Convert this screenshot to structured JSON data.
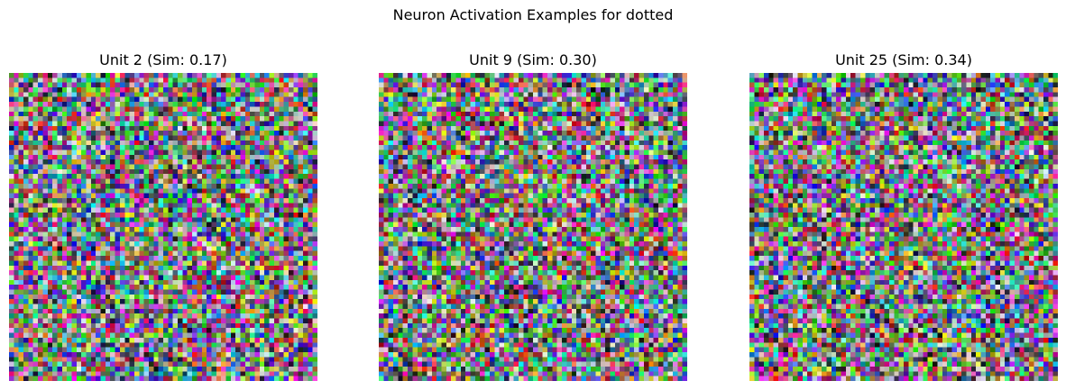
{
  "figure": {
    "suptitle": "Neuron Activation Examples for dotted"
  },
  "panels": [
    {
      "title": "Unit 2 (Sim: 0.17)",
      "unit": 2,
      "similarity": 0.17,
      "image": "random-color-noise"
    },
    {
      "title": "Unit 9 (Sim: 0.30)",
      "unit": 9,
      "similarity": 0.3,
      "image": "random-color-noise"
    },
    {
      "title": "Unit 25 (Sim: 0.34)",
      "unit": 25,
      "similarity": 0.34,
      "image": "random-color-noise"
    }
  ]
}
